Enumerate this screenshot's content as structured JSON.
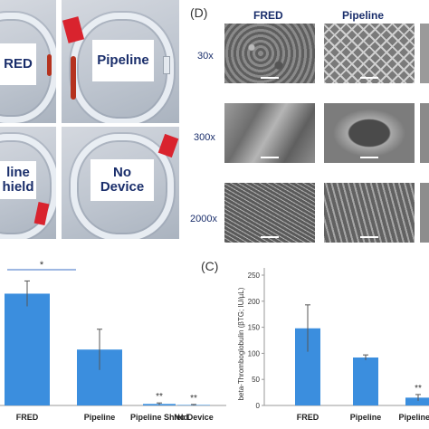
{
  "photos": [
    {
      "label": "RED"
    },
    {
      "label": "Pipeline"
    },
    {
      "label": "line\nhield"
    },
    {
      "label": "No Device"
    }
  ],
  "sem_panel": {
    "letter": "(D)",
    "columns": [
      "FRED",
      "Pipeline"
    ],
    "magnifications": [
      "30x",
      "300x",
      "2000x"
    ]
  },
  "chart_b": {
    "chart_data": {
      "type": "bar",
      "categories": [
        "FRED",
        "Pipeline",
        "Pipeline Shield",
        "No Device"
      ],
      "values": [
        220,
        110,
        3,
        1
      ],
      "errors": [
        25,
        40,
        2,
        1
      ],
      "significance": [
        "",
        "",
        "**",
        "**"
      ],
      "bracket_label": "*",
      "ylim": [
        0,
        260
      ],
      "bar_color": "#3b8ede"
    }
  },
  "chart_c": {
    "letter": "(C)",
    "chart_data": {
      "type": "bar",
      "categories": [
        "FRED",
        "Pipeline",
        "Pipeline S"
      ],
      "values": [
        148,
        92,
        15
      ],
      "errors": [
        45,
        5,
        6
      ],
      "significance": [
        "",
        "",
        "**"
      ],
      "ylabel": "beta-Thromboglobulin (βTG; IU/µL)",
      "yticks": [
        0,
        50,
        100,
        150,
        200,
        250
      ],
      "ylim": [
        0,
        250
      ],
      "bar_color": "#3b8ede"
    }
  }
}
